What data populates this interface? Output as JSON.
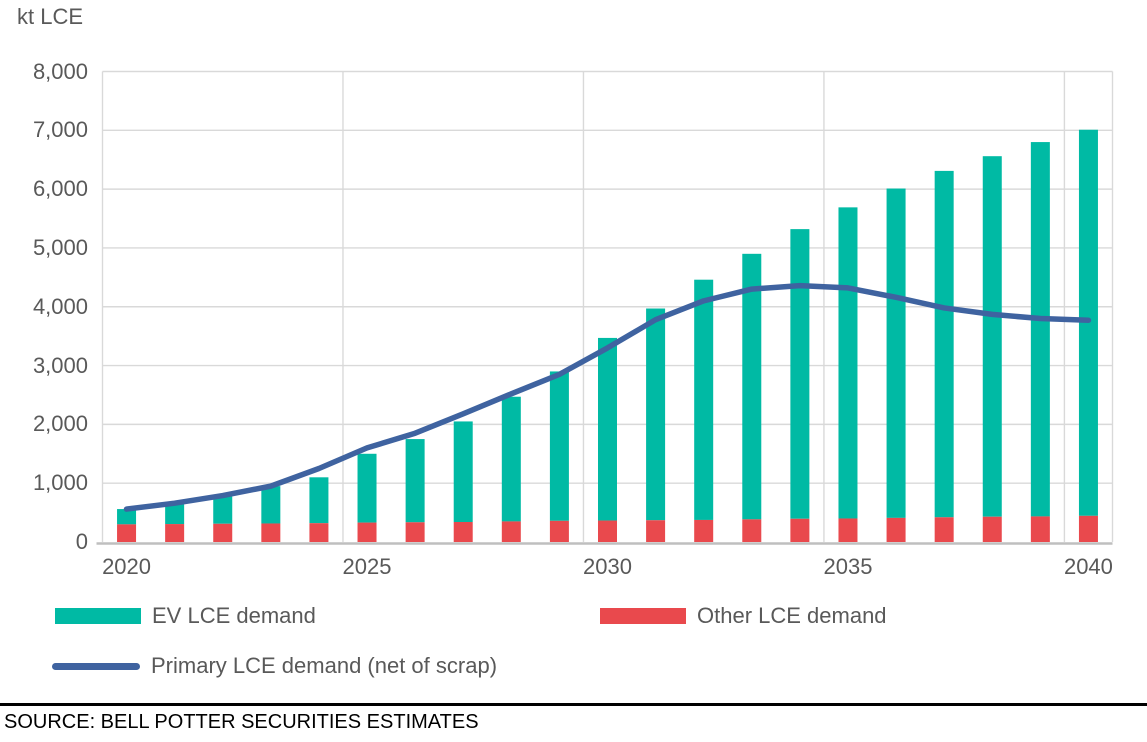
{
  "chart_data": {
    "type": "combo",
    "unit_label": "kt LCE",
    "categories": [
      2020,
      2021,
      2022,
      2023,
      2024,
      2025,
      2026,
      2027,
      2028,
      2029,
      2030,
      2031,
      2032,
      2033,
      2034,
      2035,
      2036,
      2037,
      2038,
      2039,
      2040
    ],
    "series": [
      {
        "name": "EV LCE demand",
        "type": "bar",
        "stack": "demand",
        "color": "#00BAA4",
        "values": [
          260,
          345,
          490,
          635,
          780,
          1170,
          1415,
          1710,
          2120,
          2540,
          3105,
          3600,
          4085,
          4515,
          4925,
          5290,
          5600,
          5890,
          6130,
          6365,
          6565
        ]
      },
      {
        "name": "Other LCE demand",
        "type": "bar",
        "stack": "demand",
        "color": "#E9494D",
        "values": [
          300,
          305,
          310,
          315,
          320,
          330,
          335,
          340,
          350,
          360,
          365,
          370,
          375,
          385,
          395,
          400,
          410,
          420,
          430,
          435,
          445
        ]
      },
      {
        "name": "Primary LCE demand (net of scrap)",
        "type": "line",
        "color": "#3F63A0",
        "values": [
          560,
          660,
          790,
          950,
          1250,
          1600,
          1850,
          2180,
          2520,
          2850,
          3300,
          3780,
          4100,
          4300,
          4360,
          4320,
          4160,
          3980,
          3870,
          3800,
          3770
        ]
      }
    ],
    "stack_order_bottom_to_top": [
      "Other LCE demand",
      "EV LCE demand"
    ],
    "ylim": [
      0,
      8000
    ],
    "ytick_step": 1000,
    "ytick_labels": [
      "0",
      "1,000",
      "2,000",
      "3,000",
      "4,000",
      "5,000",
      "6,000",
      "7,000",
      "8,000"
    ],
    "xtick_years": [
      2020,
      2025,
      2030,
      2035,
      2040
    ],
    "xtick_labels": [
      "2020",
      "2025",
      "2030",
      "2035",
      "2040"
    ],
    "grid": true,
    "grid_color": "#D9D9D9",
    "axis_line_color": "#BFBFBF",
    "tick_text_color": "#595959",
    "legend_position": "bottom-left"
  },
  "legend": {
    "items": [
      {
        "label": "EV LCE demand"
      },
      {
        "label": "Other LCE demand"
      },
      {
        "label": "Primary LCE demand (net of scrap)"
      }
    ]
  },
  "source": {
    "text": "SOURCE: BELL POTTER SECURITIES ESTIMATES"
  }
}
